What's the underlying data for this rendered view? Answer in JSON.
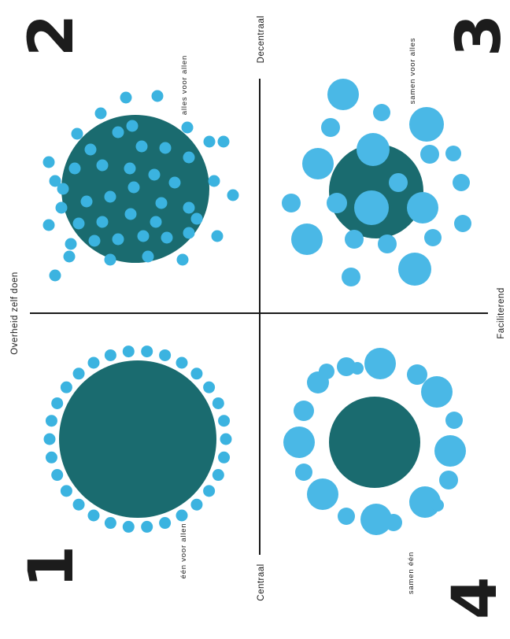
{
  "axes": {
    "top_left": "Overheid zelf doen",
    "top_right": "Decentraal",
    "bottom_left": "Centraal",
    "bottom_right": "Faciliterend"
  },
  "quadrants": [
    {
      "number": "1",
      "label": "één voor allen"
    },
    {
      "number": "2",
      "label": "alles voor allen"
    },
    {
      "number": "3",
      "label": "samen voor alles"
    },
    {
      "number": "4",
      "label": "samen één"
    }
  ],
  "colors": {
    "dark": "#1a6b6f",
    "light": "#3bb3e0",
    "line": "#1a1a1a"
  }
}
